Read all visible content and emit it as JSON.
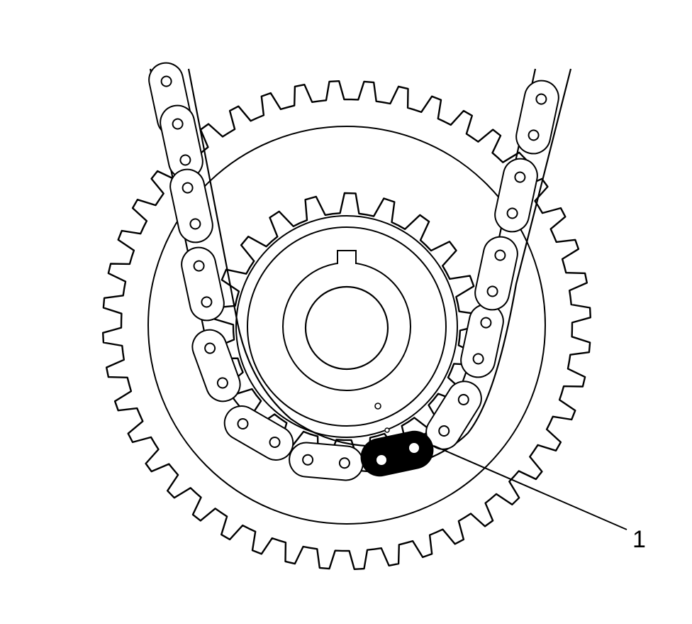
{
  "diagram": {
    "type": "timing-chain-sprocket-illustration",
    "background": "#ffffff",
    "line_color": "#000000",
    "highlight_color": "#000000",
    "large_sprocket": {
      "teeth": 44
    },
    "small_sprocket": {
      "teeth": 21
    },
    "callouts": [
      {
        "id": "1",
        "label": "1",
        "points_to": "highlighted-chain-link"
      }
    ]
  }
}
